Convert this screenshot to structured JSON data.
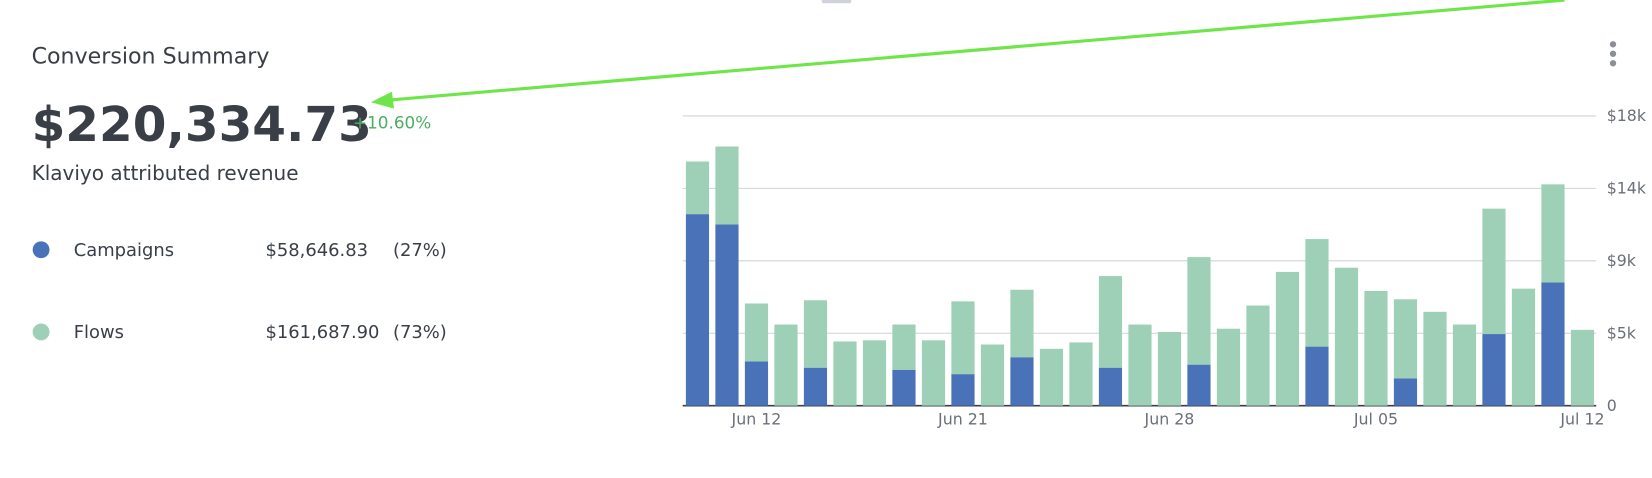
{
  "summary": {
    "title": "Conversion Summary",
    "total": "$220,334.73",
    "change": "+10.60%",
    "subtitle": "Klaviyo attributed revenue",
    "breakdown": [
      {
        "amount": "$58,646.83",
        "share": "(27%)"
      },
      {
        "amount": "$161,687.90",
        "share": "(73%)"
      }
    ]
  },
  "chart_data": {
    "type": "stacked_bar",
    "categories": [
      null,
      null,
      "Jun 12",
      null,
      null,
      null,
      null,
      null,
      null,
      "Jun 21",
      null,
      null,
      null,
      null,
      null,
      null,
      "Jun 28",
      null,
      null,
      null,
      null,
      null,
      null,
      "Jul 05",
      null,
      null,
      null,
      null,
      null,
      null,
      "Jul 12"
    ],
    "series": [
      {
        "name": "Campaigns",
        "color": "#4a72b8",
        "values": [
          11900,
          11260,
          2750,
          0,
          2360,
          0,
          0,
          2230,
          0,
          1960,
          0,
          3010,
          0,
          0,
          2360,
          0,
          0,
          2550,
          0,
          0,
          0,
          3670,
          0,
          0,
          1700,
          0,
          0,
          4450,
          0,
          7660,
          0
        ]
      },
      {
        "name": "Flows",
        "color": "#9dd0b7",
        "values": [
          3270,
          4840,
          3600,
          5040,
          4190,
          3990,
          4060,
          2810,
          4060,
          4520,
          3800,
          4190,
          3530,
          3930,
          5690,
          5040,
          4580,
          6680,
          4780,
          6220,
          8310,
          6680,
          8570,
          7130,
          4910,
          5830,
          5040,
          7790,
          7270,
          6090,
          4710
        ]
      }
    ],
    "ylim": [
      0,
      18000
    ],
    "yticks": [
      0,
      {
        "value": 4500,
        "label": "$5k"
      },
      {
        "value": 9000,
        "label": "$9k"
      },
      {
        "value": 13500,
        "label": "$14k"
      },
      {
        "value": 18000,
        "label": "$18k"
      }
    ],
    "grid": true
  }
}
